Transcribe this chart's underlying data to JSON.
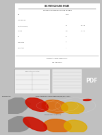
{
  "page_bg": "#c0c0c0",
  "doc_bg": "#ffffff",
  "title": "IBC METHOD BASE SHEAR",
  "subtitle": "SEISMIC PARAMETERS OF THE PROJECT",
  "param_labels": [
    "Site",
    "SITE POSITION",
    "SS (MAPPED RISK)",
    "S1 RISK",
    "TL",
    "SITE CLASS",
    "OCCUPANCY"
  ],
  "param_values": [
    "VALUE",
    "",
    "",
    "",
    "",
    "",
    ""
  ],
  "section2_title": "HORIZONTAL FORCES COMPONENT OF",
  "section2_sub": "THE TABLE FORCE",
  "table_bg": "#f0f0f0",
  "text_block_bg": "#e8e8e8",
  "pdf_color": "#1a3a6b",
  "map_section_bg": "#f5f5f5",
  "map_header": "SEISMIC MAPS",
  "map1_bg": "#b8dff0",
  "map2_bg": "#b8dff0",
  "gray_land": "#909090",
  "red_hazard": "#cc1100",
  "orange_hazard": "#dd6600",
  "yellow_hazard": "#ddaa00"
}
